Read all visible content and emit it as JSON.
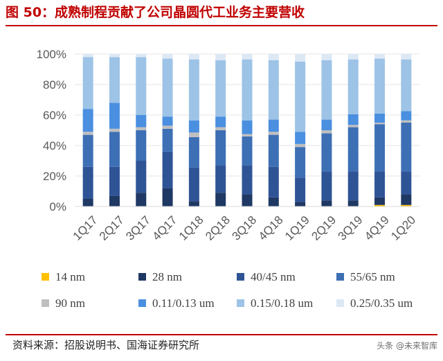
{
  "header": {
    "title": "图 50：成熟制程贡献了公司晶圆代工业务主要营收"
  },
  "footer": {
    "source": "资料来源：招股说明书、国海证券研究所",
    "watermark": "头条 @未来智库"
  },
  "chart_data": {
    "type": "bar",
    "stacked": true,
    "title": "图 50：成熟制程贡献了公司晶圆代工业务主要营收",
    "xlabel": "",
    "ylabel": "",
    "ylim": [
      0,
      100
    ],
    "yticks": [
      "0%",
      "20%",
      "40%",
      "60%",
      "80%",
      "100%"
    ],
    "categories": [
      "1Q17",
      "2Q17",
      "3Q17",
      "4Q17",
      "1Q18",
      "2Q18",
      "3Q18",
      "4Q18",
      "1Q19",
      "2Q19",
      "3Q19",
      "4Q19",
      "1Q20"
    ],
    "legend_position": "bottom",
    "series": [
      {
        "name": "14 nm",
        "color": "#ffc000",
        "values": [
          0,
          0,
          0,
          0,
          0,
          0,
          0,
          0,
          0,
          0,
          0,
          1,
          1
        ]
      },
      {
        "name": "28 nm",
        "color": "#1f3864",
        "values": [
          5,
          7,
          9,
          12,
          3.5,
          9,
          8,
          6,
          3,
          4,
          4,
          5,
          7
        ]
      },
      {
        "name": "40/45 nm",
        "color": "#2f5496",
        "values": [
          21,
          19,
          21,
          24,
          22,
          18,
          19,
          20,
          16,
          19,
          19,
          17,
          15
        ]
      },
      {
        "name": "55/65 nm",
        "color": "#3d6fb5",
        "values": [
          21,
          23,
          20,
          15,
          20,
          23,
          19,
          21,
          20,
          25,
          29,
          31,
          32
        ]
      },
      {
        "name": "90 nm",
        "color": "#bfbfbf",
        "values": [
          2,
          2,
          2,
          2,
          3,
          2,
          1.5,
          2,
          2,
          2,
          1.5,
          1,
          1.5
        ]
      },
      {
        "name": "0.11/0.13 um",
        "color": "#4a8fe0",
        "values": [
          15,
          17,
          8,
          6,
          8,
          7,
          9,
          8,
          8,
          7,
          7,
          6,
          6
        ]
      },
      {
        "name": "0.15/0.18 um",
        "color": "#9dc3e6",
        "values": [
          34,
          30,
          38,
          38,
          40,
          37,
          40,
          39,
          46,
          39,
          36,
          36,
          34
        ]
      },
      {
        "name": "0.25/0.35 um",
        "color": "#dde8f5",
        "values": [
          2,
          2,
          2,
          3,
          3.5,
          4,
          3.5,
          4,
          5,
          4,
          3.5,
          3,
          3.5
        ]
      }
    ]
  }
}
